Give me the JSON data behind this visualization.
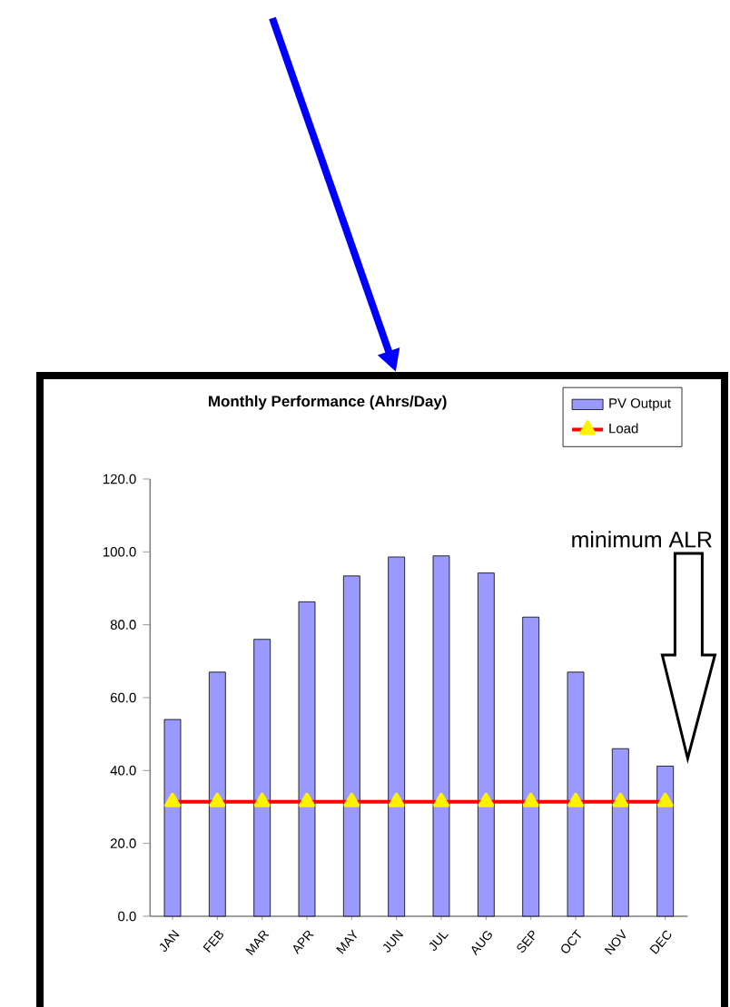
{
  "chart_data": {
    "type": "bar",
    "title": "Monthly Performance (Ahrs/Day)",
    "categories": [
      "JAN",
      "FEB",
      "MAR",
      "APR",
      "MAY",
      "JUN",
      "JUL",
      "AUG",
      "SEP",
      "OCT",
      "NOV",
      "DEC"
    ],
    "series": [
      {
        "name": "PV Output",
        "color": "#9999ff",
        "values": [
          54.0,
          67.0,
          76.0,
          86.3,
          93.4,
          98.6,
          98.9,
          94.2,
          82.1,
          67.0,
          46.0,
          41.2
        ]
      },
      {
        "name": "Load",
        "type": "line",
        "color": "#ff0000",
        "marker": "triangle",
        "values": [
          31.4,
          31.4,
          31.4,
          31.4,
          31.4,
          31.4,
          31.4,
          31.4,
          31.4,
          31.4,
          31.4,
          31.4
        ]
      }
    ],
    "ylim": [
      0,
      120
    ],
    "yticks": [
      {
        "value": 0,
        "label": "0.0"
      },
      {
        "value": 20,
        "label": "20.0"
      },
      {
        "value": 40,
        "label": "40.0"
      },
      {
        "value": 60,
        "label": "60.0"
      },
      {
        "value": 80,
        "label": "80.0"
      },
      {
        "value": 100,
        "label": "100.0"
      },
      {
        "value": 120,
        "label": "120.0"
      }
    ],
    "legend": "top right",
    "annotations": [
      "minimum ALR"
    ]
  }
}
